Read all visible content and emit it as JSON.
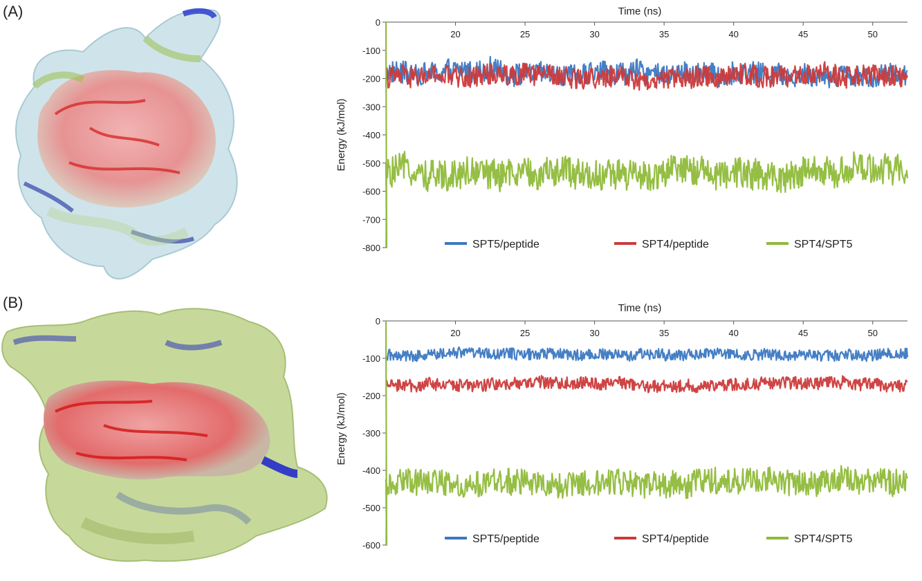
{
  "panels": [
    {
      "label": "(A)",
      "molecule_icon": "protein-surface-render",
      "chart_data": {
        "type": "line",
        "xlabel": "Time (ns)",
        "ylabel": "Energy (kJ/mol)",
        "xlim": [
          15,
          52.5
        ],
        "ylim": [
          -800,
          0
        ],
        "x_ticks": [
          20,
          25,
          30,
          35,
          40,
          45,
          50
        ],
        "y_ticks": [
          0,
          -100,
          -200,
          -300,
          -400,
          -500,
          -600,
          -700,
          -800
        ],
        "legend_position": "bottom",
        "series": [
          {
            "name": "SPT5/peptide",
            "color": "#3b78c2",
            "mean": -180,
            "amplitude": 40
          },
          {
            "name": "SPT4/peptide",
            "color": "#cc3a3a",
            "mean": -195,
            "amplitude": 38
          },
          {
            "name": "SPT4/SPT5",
            "color": "#8fba3a",
            "mean": -535,
            "amplitude": 55
          }
        ]
      }
    },
    {
      "label": "(B)",
      "molecule_icon": "protein-surface-render",
      "chart_data": {
        "type": "line",
        "xlabel": "Time (ns)",
        "ylabel": "Energy (kJ/mol)",
        "xlim": [
          15,
          52.5
        ],
        "ylim": [
          -600,
          0
        ],
        "x_ticks": [
          20,
          25,
          30,
          35,
          40,
          45,
          50
        ],
        "y_ticks": [
          0,
          -100,
          -200,
          -300,
          -400,
          -500,
          -600
        ],
        "legend_position": "bottom",
        "series": [
          {
            "name": "SPT5/peptide",
            "color": "#3b78c2",
            "mean": -90,
            "amplitude": 15
          },
          {
            "name": "SPT4/peptide",
            "color": "#cc3a3a",
            "mean": -170,
            "amplitude": 17
          },
          {
            "name": "SPT4/SPT5",
            "color": "#8fba3a",
            "mean": -435,
            "amplitude": 35
          }
        ]
      }
    }
  ]
}
